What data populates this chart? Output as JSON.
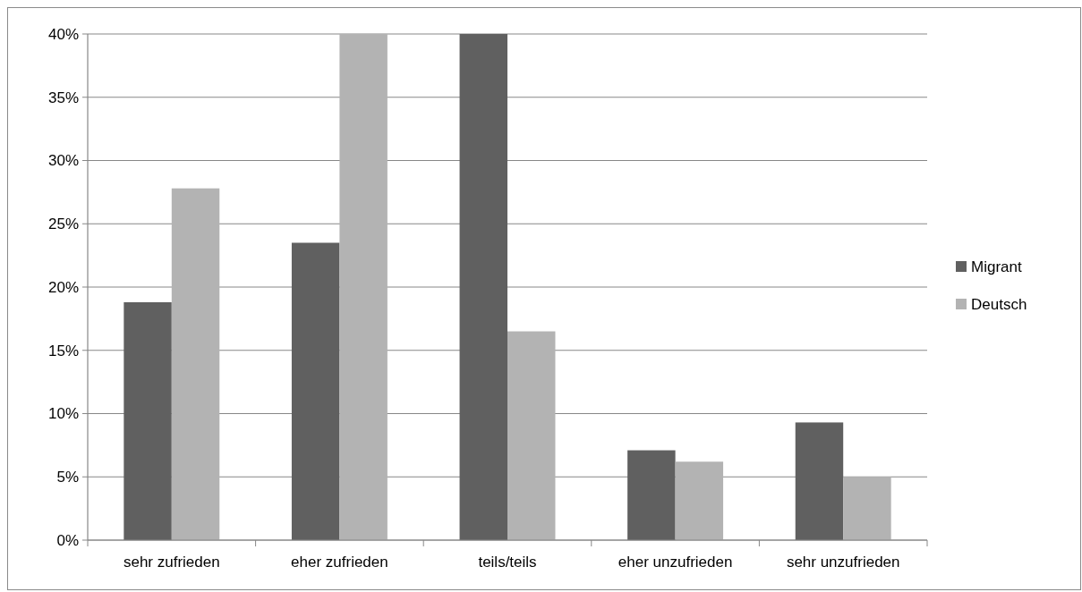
{
  "chart_data": {
    "type": "bar",
    "categories": [
      "sehr zufrieden",
      "eher zufrieden",
      "teils/teils",
      "eher unzufrieden",
      "sehr unzufrieden"
    ],
    "series": [
      {
        "name": "Migrant",
        "color": "#606060",
        "values": [
          18.8,
          23.5,
          40,
          7.1,
          9.3
        ]
      },
      {
        "name": "Deutsch",
        "color": "#b3b3b3",
        "values": [
          27.8,
          40,
          16.5,
          6.2,
          5.0
        ]
      }
    ],
    "ylim": [
      0,
      40
    ],
    "yticks": [
      {
        "value": 0,
        "label": "0%"
      },
      {
        "value": 5,
        "label": "5%"
      },
      {
        "value": 10,
        "label": "10%"
      },
      {
        "value": 15,
        "label": "15%"
      },
      {
        "value": 20,
        "label": "20%"
      },
      {
        "value": 25,
        "label": "25%"
      },
      {
        "value": 30,
        "label": "30%"
      },
      {
        "value": 35,
        "label": "35%"
      },
      {
        "value": 40,
        "label": "40%"
      }
    ],
    "grid": "y",
    "legend": "right"
  }
}
